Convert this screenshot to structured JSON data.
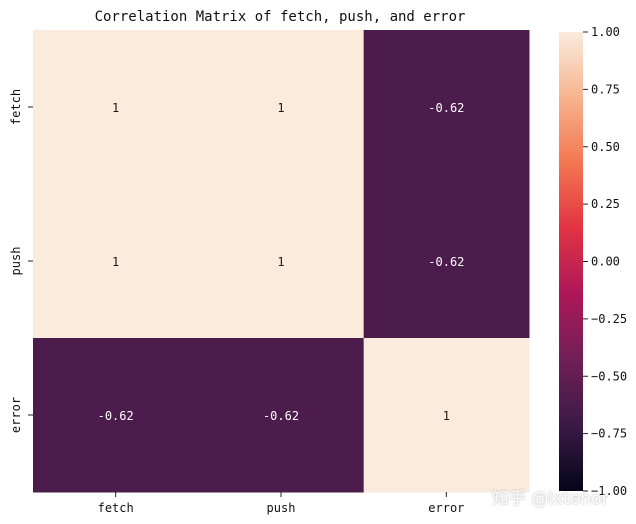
{
  "chart_data": {
    "type": "heatmap",
    "title": "Correlation Matrix of fetch, push, and error",
    "x_categories": [
      "fetch",
      "push",
      "error"
    ],
    "y_categories": [
      "fetch",
      "push",
      "error"
    ],
    "values": [
      [
        1,
        1,
        -0.62
      ],
      [
        1,
        1,
        -0.62
      ],
      [
        -0.62,
        -0.62,
        1
      ]
    ],
    "cell_labels": [
      [
        "1",
        "1",
        "-0.62"
      ],
      [
        "1",
        "1",
        "-0.62"
      ],
      [
        "-0.62",
        "-0.62",
        "1"
      ]
    ],
    "colorbar": {
      "vmin": -1.0,
      "vmax": 1.0,
      "ticks": [
        1.0,
        0.75,
        0.5,
        0.25,
        0.0,
        -0.25,
        -0.5,
        -0.75,
        -1.0
      ],
      "tick_labels": [
        "1.00",
        "0.75",
        "0.50",
        "0.25",
        "0.00",
        "−0.25",
        "−0.50",
        "−0.75",
        "−1.00"
      ],
      "colormap": "rocket",
      "color_stops": [
        "#03051a",
        "#3b1a46",
        "#701f57",
        "#ad1759",
        "#e13342",
        "#f37651",
        "#f6b48f",
        "#faebdd"
      ]
    }
  },
  "watermark": "知乎 @lxtenor"
}
